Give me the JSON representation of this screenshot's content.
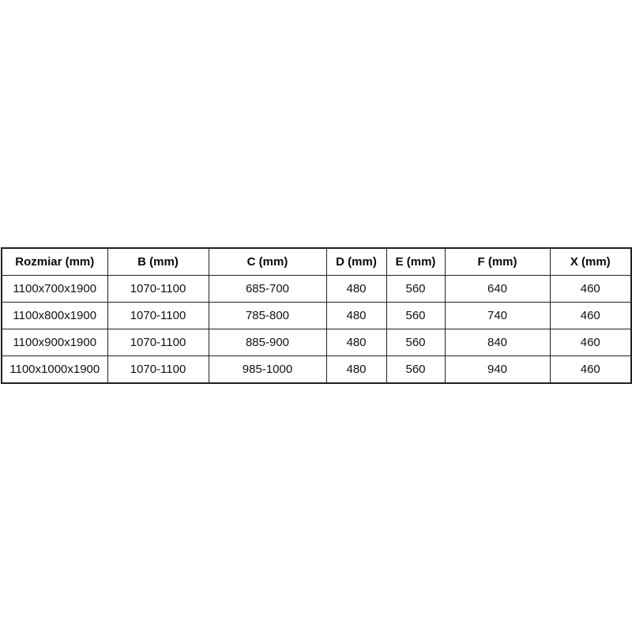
{
  "colors": {
    "background": "#ffffff",
    "border": "#212121",
    "text": "#111111"
  },
  "chart_data": {
    "type": "table",
    "title": "",
    "columns": [
      "Rozmiar (mm)",
      "B (mm)",
      "C (mm)",
      "D (mm)",
      "E (mm)",
      "F (mm)",
      "X (mm)"
    ],
    "rows": [
      [
        "1100x700x1900",
        "1070-1100",
        "685-700",
        "480",
        "560",
        "640",
        "460"
      ],
      [
        "1100x800x1900",
        "1070-1100",
        "785-800",
        "480",
        "560",
        "740",
        "460"
      ],
      [
        "1100x900x1900",
        "1070-1100",
        "885-900",
        "480",
        "560",
        "840",
        "460"
      ],
      [
        "1100x1000x1900",
        "1070-1100",
        "985-1000",
        "480",
        "560",
        "940",
        "460"
      ]
    ]
  }
}
